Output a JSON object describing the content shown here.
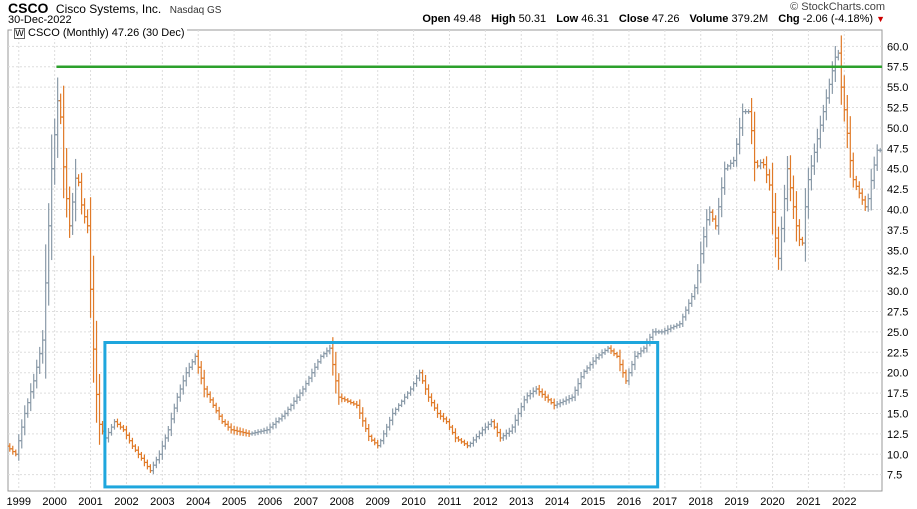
{
  "header": {
    "symbol": "CSCO",
    "company": "Cisco Systems, Inc.",
    "exchange": "Nasdaq GS",
    "date": "30-Dec-2022",
    "logo": "© StockCharts.com",
    "open_label": "Open",
    "open": "49.48",
    "high_label": "High",
    "high": "50.31",
    "low_label": "Low",
    "low": "46.31",
    "close_label": "Close",
    "close": "47.26",
    "volume_label": "Volume",
    "volume": "379.2M",
    "chg_label": "Chg",
    "chg": "-2.06 (-4.18%)",
    "chg_arrow": "▼"
  },
  "legend": {
    "icon": "W",
    "text": "CSCO (Monthly) 47.26 (30 Dec)"
  },
  "colors": {
    "up": "#8a9aa8",
    "down": "#e07a28",
    "hline": "#2ca02c",
    "box": "#1ea6dd",
    "grid": "#dddddd",
    "arrow": "#cc0000"
  },
  "chart_data": {
    "type": "line",
    "title": "CSCO (Monthly) 47.26 (30 Dec)",
    "xlabel": "",
    "ylabel": "",
    "x_ticks": [
      "1999",
      "2000",
      "2001",
      "2002",
      "2003",
      "2004",
      "2005",
      "2006",
      "2007",
      "2008",
      "2009",
      "2010",
      "2011",
      "2012",
      "2013",
      "2014",
      "2015",
      "2016",
      "2017",
      "2018",
      "2019",
      "2020",
      "2021",
      "2022"
    ],
    "y_ticks": [
      "7.5",
      "10.0",
      "12.5",
      "15.0",
      "17.5",
      "20.0",
      "22.5",
      "25.0",
      "27.5",
      "30.0",
      "32.5",
      "35.0",
      "37.5",
      "40.0",
      "42.5",
      "45.0",
      "47.5",
      "50.0",
      "52.5",
      "55.0",
      "57.5",
      "60.0"
    ],
    "ylim": [
      5.5,
      62
    ],
    "xlim": [
      1998.7,
      2023.05
    ],
    "grid": true,
    "series": [
      {
        "values": [
          [
            1998.75,
            11
          ],
          [
            1999.0,
            10
          ],
          [
            1999.25,
            15
          ],
          [
            1999.5,
            19
          ],
          [
            1999.75,
            24
          ],
          [
            2000.0,
            45
          ],
          [
            2000.2,
            55
          ],
          [
            2000.35,
            44
          ],
          [
            2000.5,
            38
          ],
          [
            2000.7,
            45
          ],
          [
            2000.85,
            40
          ],
          [
            2001.0,
            38
          ],
          [
            2001.15,
            24
          ],
          [
            2001.3,
            14
          ],
          [
            2001.5,
            12
          ],
          [
            2001.75,
            14
          ],
          [
            2002.0,
            13
          ],
          [
            2002.25,
            11
          ],
          [
            2002.5,
            9.5
          ],
          [
            2002.75,
            8
          ],
          [
            2003.0,
            10
          ],
          [
            2003.25,
            13
          ],
          [
            2003.5,
            17
          ],
          [
            2003.75,
            20
          ],
          [
            2004.0,
            22
          ],
          [
            2004.25,
            18
          ],
          [
            2004.5,
            16
          ],
          [
            2004.75,
            14
          ],
          [
            2005.0,
            13
          ],
          [
            2005.5,
            12.5
          ],
          [
            2006.0,
            13
          ],
          [
            2006.5,
            15
          ],
          [
            2007.0,
            18
          ],
          [
            2007.5,
            22
          ],
          [
            2007.75,
            23
          ],
          [
            2008.0,
            17
          ],
          [
            2008.5,
            16
          ],
          [
            2008.85,
            12
          ],
          [
            2009.1,
            11
          ],
          [
            2009.5,
            15
          ],
          [
            2010.0,
            18
          ],
          [
            2010.25,
            20
          ],
          [
            2010.5,
            17
          ],
          [
            2010.75,
            15
          ],
          [
            2011.0,
            14
          ],
          [
            2011.25,
            12
          ],
          [
            2011.6,
            11
          ],
          [
            2012.0,
            13
          ],
          [
            2012.25,
            14
          ],
          [
            2012.5,
            12
          ],
          [
            2012.8,
            13
          ],
          [
            2013.2,
            17
          ],
          [
            2013.5,
            18
          ],
          [
            2013.75,
            17
          ],
          [
            2014.0,
            16
          ],
          [
            2014.5,
            17
          ],
          [
            2014.8,
            20
          ],
          [
            2015.2,
            22
          ],
          [
            2015.5,
            23
          ],
          [
            2015.75,
            22
          ],
          [
            2016.0,
            19
          ],
          [
            2016.25,
            22
          ],
          [
            2016.5,
            23
          ],
          [
            2016.75,
            25
          ],
          [
            2017.0,
            25
          ],
          [
            2017.5,
            26
          ],
          [
            2017.9,
            30
          ],
          [
            2018.1,
            35
          ],
          [
            2018.3,
            40
          ],
          [
            2018.5,
            38
          ],
          [
            2018.75,
            45
          ],
          [
            2019.0,
            46
          ],
          [
            2019.25,
            52
          ],
          [
            2019.45,
            52
          ],
          [
            2019.6,
            45
          ],
          [
            2019.8,
            46
          ],
          [
            2020.0,
            43
          ],
          [
            2020.15,
            37
          ],
          [
            2020.25,
            34
          ],
          [
            2020.5,
            45
          ],
          [
            2020.75,
            38
          ],
          [
            2020.9,
            35
          ],
          [
            2021.05,
            43
          ],
          [
            2021.3,
            48
          ],
          [
            2021.5,
            52
          ],
          [
            2021.7,
            56
          ],
          [
            2021.9,
            60
          ],
          [
            2022.0,
            55
          ],
          [
            2022.15,
            50
          ],
          [
            2022.3,
            44
          ],
          [
            2022.5,
            42
          ],
          [
            2022.7,
            40
          ],
          [
            2022.85,
            44
          ],
          [
            2023.0,
            47.26
          ]
        ]
      }
    ],
    "reference_line": 57.5,
    "box": {
      "x0": 2001.4,
      "x1": 2016.8,
      "y0": 6.0,
      "y1": 23.7
    }
  }
}
